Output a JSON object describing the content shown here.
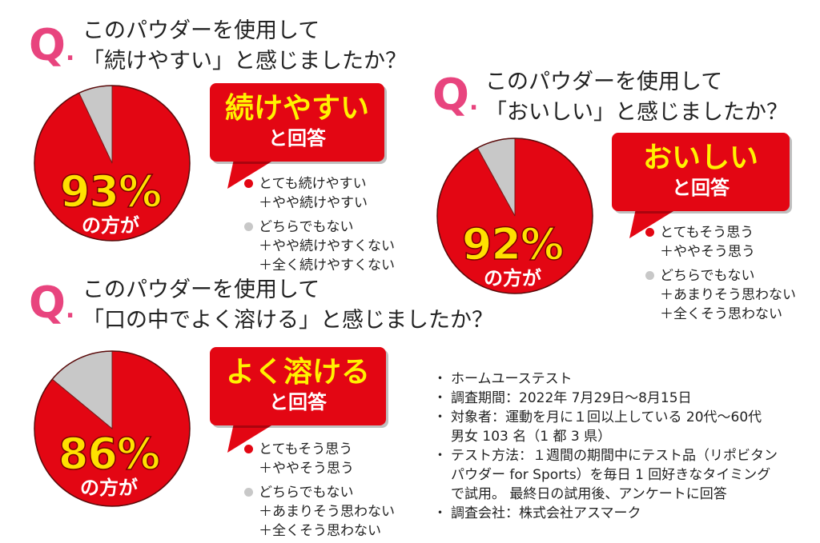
{
  "colors": {
    "red": "#e30613",
    "gray": "#c8c8c8",
    "q_pink": "#e8447e",
    "yellow": "#ffe100"
  },
  "q_symbol": "Q",
  "q_dot": ".",
  "chart_data": [
    {
      "type": "pie",
      "title_line1": "このパウダーを使用して",
      "title_line2": "「続けやすい」と感じましたか？",
      "slices": [
        {
          "label": "とても続けやすい＋やや続けやすい",
          "value": 93,
          "color": "#e30613"
        },
        {
          "label": "どちらでもない＋やや続けやすくない＋全く続けやすくない",
          "value": 7,
          "color": "#c8c8c8"
        }
      ],
      "pct_text": "93%",
      "pct_sub": "の方が",
      "bubble_main": "続けやすい",
      "bubble_sub": "と回答",
      "legend": [
        {
          "lines": [
            "とても続けやすい",
            "＋やや続けやすい"
          ],
          "color": "#e30613"
        },
        {
          "lines": [
            "どちらでもない",
            "＋やや続けやすくない",
            "＋全く続けやすくない"
          ],
          "color": "#c8c8c8"
        }
      ]
    },
    {
      "type": "pie",
      "title_line1": "このパウダーを使用して",
      "title_line2": "「おいしい」と感じましたか？",
      "slices": [
        {
          "label": "とてもそう思う＋ややそう思う",
          "value": 92,
          "color": "#e30613"
        },
        {
          "label": "どちらでもない＋あまりそう思わない＋全くそう思わない",
          "value": 8,
          "color": "#c8c8c8"
        }
      ],
      "pct_text": "92%",
      "pct_sub": "の方が",
      "bubble_main": "おいしい",
      "bubble_sub": "と回答",
      "legend": [
        {
          "lines": [
            "とてもそう思う",
            "＋ややそう思う"
          ],
          "color": "#e30613"
        },
        {
          "lines": [
            "どちらでもない",
            "＋あまりそう思わない",
            "＋全くそう思わない"
          ],
          "color": "#c8c8c8"
        }
      ]
    },
    {
      "type": "pie",
      "title_line1": "このパウダーを使用して",
      "title_line2": "「口の中でよく溶ける」と感じましたか？",
      "slices": [
        {
          "label": "とてもそう思う＋ややそう思う",
          "value": 86,
          "color": "#e30613"
        },
        {
          "label": "どちらでもない＋あまりそう思わない＋全くそう思わない",
          "value": 14,
          "color": "#c8c8c8"
        }
      ],
      "pct_text": "86%",
      "pct_sub": "の方が",
      "bubble_main": "よく溶ける",
      "bubble_sub": "と回答",
      "legend": [
        {
          "lines": [
            "とてもそう思う",
            "＋ややそう思う"
          ],
          "color": "#e30613"
        },
        {
          "lines": [
            "どちらでもない",
            "＋あまりそう思わない",
            "＋全くそう思わない"
          ],
          "color": "#c8c8c8"
        }
      ]
    }
  ],
  "notes": [
    "ホームユーステスト",
    "調査期間：2022年 7月29日〜8月15日",
    "対象者：運動を月に１回以上している 20代〜60代",
    "男女 103 名（1 都 3 県）",
    "テスト方法：１週間の期間中にテスト品（リポビタン",
    "パウダー for Sports）を毎日 1 回好きなタイミング",
    "で試用。 最終日の試用後、アンケートに回答",
    "調査会社：株式会社アスマーク"
  ],
  "notes_bullets": [
    true,
    true,
    true,
    false,
    true,
    false,
    false,
    true
  ]
}
